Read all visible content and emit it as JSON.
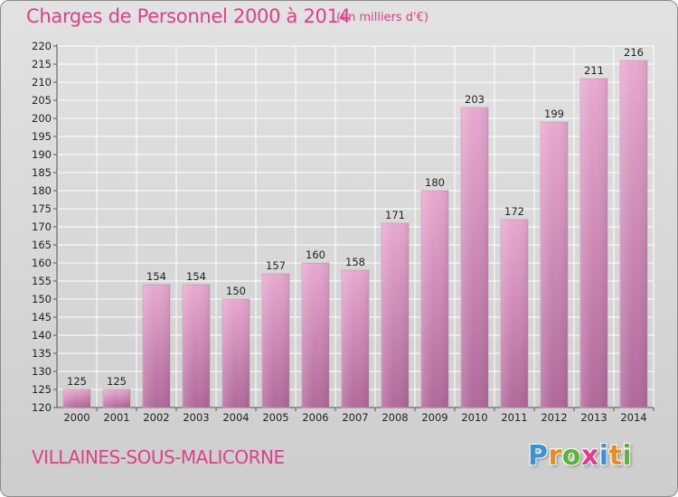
{
  "title": "Charges de Personnel 2000 à 2014",
  "subtitle": "(en milliers d'€)",
  "commune": "VILLAINES-SOUS-MALICORNE",
  "logo": {
    "letters": [
      "P",
      "r",
      "o",
      "x",
      "i",
      "t",
      "i"
    ],
    "colors": [
      "#3d8fd6",
      "#f08a1c",
      "#5bb53a",
      "#e83a8c",
      "#3d8fd6",
      "#f08a1c",
      "#5bb53a"
    ]
  },
  "colors": {
    "accent": "#d9438b",
    "bar_top": "#e8a9cf",
    "bar_bottom": "#b0699a"
  },
  "chart_data": {
    "type": "bar",
    "categories": [
      "2000",
      "2001",
      "2002",
      "2003",
      "2004",
      "2005",
      "2006",
      "2007",
      "2008",
      "2009",
      "2010",
      "2011",
      "2012",
      "2013",
      "2014"
    ],
    "values": [
      125,
      125,
      154,
      154,
      150,
      157,
      160,
      158,
      171,
      180,
      203,
      172,
      199,
      211,
      216
    ],
    "ylim": [
      120,
      220
    ],
    "yticks": [
      120,
      125,
      130,
      135,
      140,
      145,
      150,
      155,
      160,
      165,
      170,
      175,
      180,
      185,
      190,
      195,
      200,
      205,
      210,
      215,
      220
    ],
    "grid": true,
    "xlabel": "",
    "ylabel": ""
  }
}
